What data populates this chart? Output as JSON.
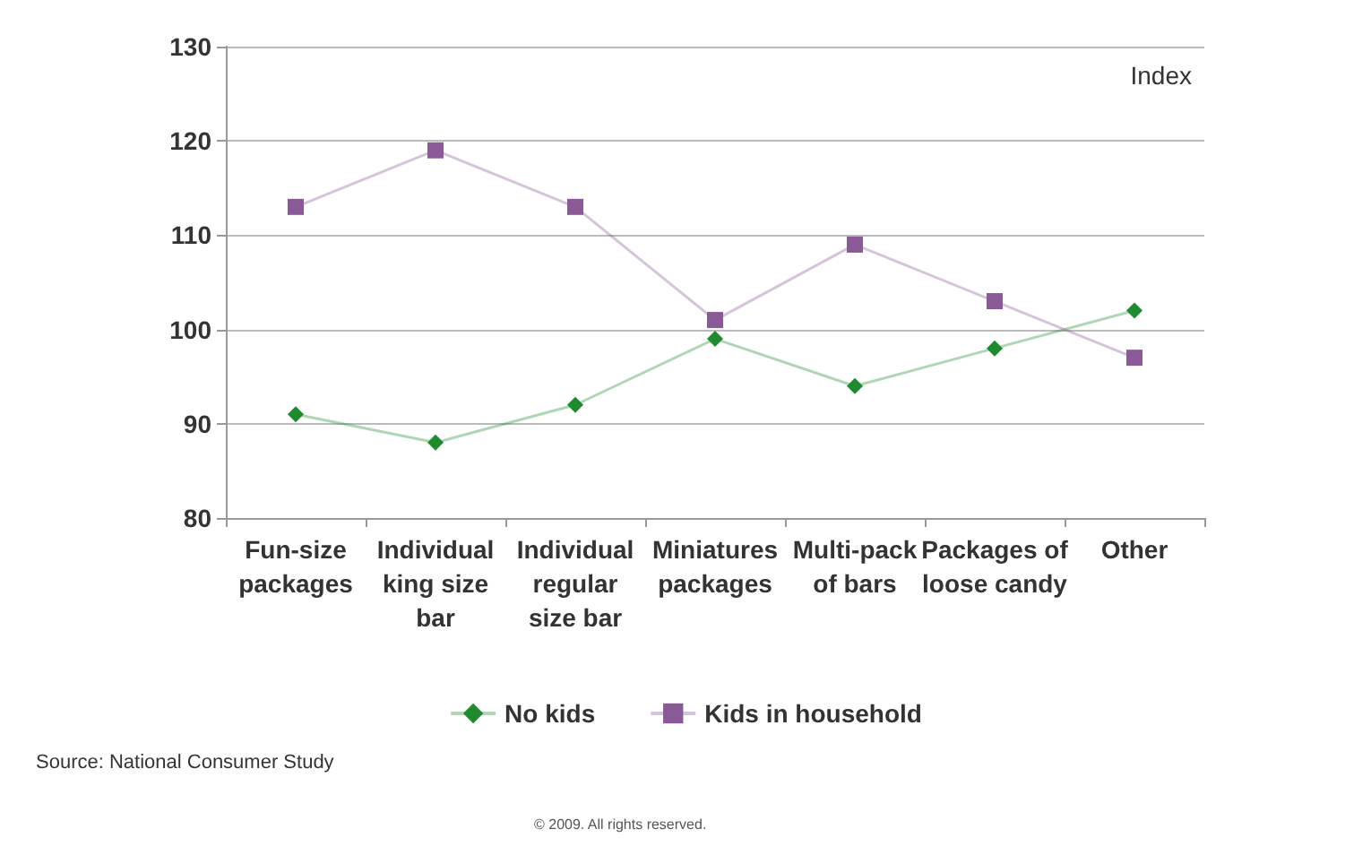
{
  "chart_data": {
    "type": "line",
    "categories": [
      "Fun-size packages",
      "Individual king size bar",
      "Individual regular size bar",
      "Miniatures packages",
      "Multi-pack of bars",
      "Packages of loose candy",
      "Other"
    ],
    "series": [
      {
        "name": "No kids",
        "color": "#1f8a2e",
        "marker": "diamond",
        "values": [
          91,
          88,
          92,
          99,
          94,
          98,
          102
        ]
      },
      {
        "name": "Kids in household",
        "color": "#8a5a96",
        "marker": "square",
        "values": [
          113,
          119,
          113,
          101,
          109,
          103,
          97
        ]
      }
    ],
    "ylim": [
      80,
      130
    ],
    "yticks": [
      80,
      90,
      100,
      110,
      120,
      130
    ],
    "grid": "y",
    "legend": "bottom",
    "annotations": [
      "Index",
      "Source: National Consumer Study",
      "© 2009. All rights reserved."
    ]
  }
}
